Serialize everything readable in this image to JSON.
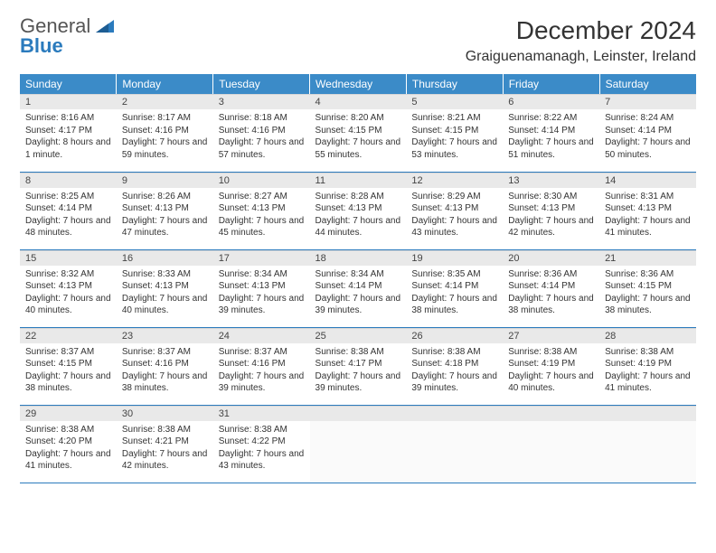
{
  "logo": {
    "line1": "General",
    "line2": "Blue"
  },
  "title": "December 2024",
  "location": "Graiguenamanagh, Leinster, Ireland",
  "colors": {
    "header_bg": "#3b8bc8",
    "header_text": "#ffffff",
    "rule": "#2b7bbd",
    "daynum_bg": "#e9e9e9",
    "body_bg": "#ffffff",
    "text": "#333333",
    "logo_blue": "#2b7bbd"
  },
  "weekdays": [
    "Sunday",
    "Monday",
    "Tuesday",
    "Wednesday",
    "Thursday",
    "Friday",
    "Saturday"
  ],
  "weeks": [
    [
      {
        "n": "1",
        "sr": "Sunrise: 8:16 AM",
        "ss": "Sunset: 4:17 PM",
        "dl": "Daylight: 8 hours and 1 minute."
      },
      {
        "n": "2",
        "sr": "Sunrise: 8:17 AM",
        "ss": "Sunset: 4:16 PM",
        "dl": "Daylight: 7 hours and 59 minutes."
      },
      {
        "n": "3",
        "sr": "Sunrise: 8:18 AM",
        "ss": "Sunset: 4:16 PM",
        "dl": "Daylight: 7 hours and 57 minutes."
      },
      {
        "n": "4",
        "sr": "Sunrise: 8:20 AM",
        "ss": "Sunset: 4:15 PM",
        "dl": "Daylight: 7 hours and 55 minutes."
      },
      {
        "n": "5",
        "sr": "Sunrise: 8:21 AM",
        "ss": "Sunset: 4:15 PM",
        "dl": "Daylight: 7 hours and 53 minutes."
      },
      {
        "n": "6",
        "sr": "Sunrise: 8:22 AM",
        "ss": "Sunset: 4:14 PM",
        "dl": "Daylight: 7 hours and 51 minutes."
      },
      {
        "n": "7",
        "sr": "Sunrise: 8:24 AM",
        "ss": "Sunset: 4:14 PM",
        "dl": "Daylight: 7 hours and 50 minutes."
      }
    ],
    [
      {
        "n": "8",
        "sr": "Sunrise: 8:25 AM",
        "ss": "Sunset: 4:14 PM",
        "dl": "Daylight: 7 hours and 48 minutes."
      },
      {
        "n": "9",
        "sr": "Sunrise: 8:26 AM",
        "ss": "Sunset: 4:13 PM",
        "dl": "Daylight: 7 hours and 47 minutes."
      },
      {
        "n": "10",
        "sr": "Sunrise: 8:27 AM",
        "ss": "Sunset: 4:13 PM",
        "dl": "Daylight: 7 hours and 45 minutes."
      },
      {
        "n": "11",
        "sr": "Sunrise: 8:28 AM",
        "ss": "Sunset: 4:13 PM",
        "dl": "Daylight: 7 hours and 44 minutes."
      },
      {
        "n": "12",
        "sr": "Sunrise: 8:29 AM",
        "ss": "Sunset: 4:13 PM",
        "dl": "Daylight: 7 hours and 43 minutes."
      },
      {
        "n": "13",
        "sr": "Sunrise: 8:30 AM",
        "ss": "Sunset: 4:13 PM",
        "dl": "Daylight: 7 hours and 42 minutes."
      },
      {
        "n": "14",
        "sr": "Sunrise: 8:31 AM",
        "ss": "Sunset: 4:13 PM",
        "dl": "Daylight: 7 hours and 41 minutes."
      }
    ],
    [
      {
        "n": "15",
        "sr": "Sunrise: 8:32 AM",
        "ss": "Sunset: 4:13 PM",
        "dl": "Daylight: 7 hours and 40 minutes."
      },
      {
        "n": "16",
        "sr": "Sunrise: 8:33 AM",
        "ss": "Sunset: 4:13 PM",
        "dl": "Daylight: 7 hours and 40 minutes."
      },
      {
        "n": "17",
        "sr": "Sunrise: 8:34 AM",
        "ss": "Sunset: 4:13 PM",
        "dl": "Daylight: 7 hours and 39 minutes."
      },
      {
        "n": "18",
        "sr": "Sunrise: 8:34 AM",
        "ss": "Sunset: 4:14 PM",
        "dl": "Daylight: 7 hours and 39 minutes."
      },
      {
        "n": "19",
        "sr": "Sunrise: 8:35 AM",
        "ss": "Sunset: 4:14 PM",
        "dl": "Daylight: 7 hours and 38 minutes."
      },
      {
        "n": "20",
        "sr": "Sunrise: 8:36 AM",
        "ss": "Sunset: 4:14 PM",
        "dl": "Daylight: 7 hours and 38 minutes."
      },
      {
        "n": "21",
        "sr": "Sunrise: 8:36 AM",
        "ss": "Sunset: 4:15 PM",
        "dl": "Daylight: 7 hours and 38 minutes."
      }
    ],
    [
      {
        "n": "22",
        "sr": "Sunrise: 8:37 AM",
        "ss": "Sunset: 4:15 PM",
        "dl": "Daylight: 7 hours and 38 minutes."
      },
      {
        "n": "23",
        "sr": "Sunrise: 8:37 AM",
        "ss": "Sunset: 4:16 PM",
        "dl": "Daylight: 7 hours and 38 minutes."
      },
      {
        "n": "24",
        "sr": "Sunrise: 8:37 AM",
        "ss": "Sunset: 4:16 PM",
        "dl": "Daylight: 7 hours and 39 minutes."
      },
      {
        "n": "25",
        "sr": "Sunrise: 8:38 AM",
        "ss": "Sunset: 4:17 PM",
        "dl": "Daylight: 7 hours and 39 minutes."
      },
      {
        "n": "26",
        "sr": "Sunrise: 8:38 AM",
        "ss": "Sunset: 4:18 PM",
        "dl": "Daylight: 7 hours and 39 minutes."
      },
      {
        "n": "27",
        "sr": "Sunrise: 8:38 AM",
        "ss": "Sunset: 4:19 PM",
        "dl": "Daylight: 7 hours and 40 minutes."
      },
      {
        "n": "28",
        "sr": "Sunrise: 8:38 AM",
        "ss": "Sunset: 4:19 PM",
        "dl": "Daylight: 7 hours and 41 minutes."
      }
    ],
    [
      {
        "n": "29",
        "sr": "Sunrise: 8:38 AM",
        "ss": "Sunset: 4:20 PM",
        "dl": "Daylight: 7 hours and 41 minutes."
      },
      {
        "n": "30",
        "sr": "Sunrise: 8:38 AM",
        "ss": "Sunset: 4:21 PM",
        "dl": "Daylight: 7 hours and 42 minutes."
      },
      {
        "n": "31",
        "sr": "Sunrise: 8:38 AM",
        "ss": "Sunset: 4:22 PM",
        "dl": "Daylight: 7 hours and 43 minutes."
      },
      null,
      null,
      null,
      null
    ]
  ]
}
